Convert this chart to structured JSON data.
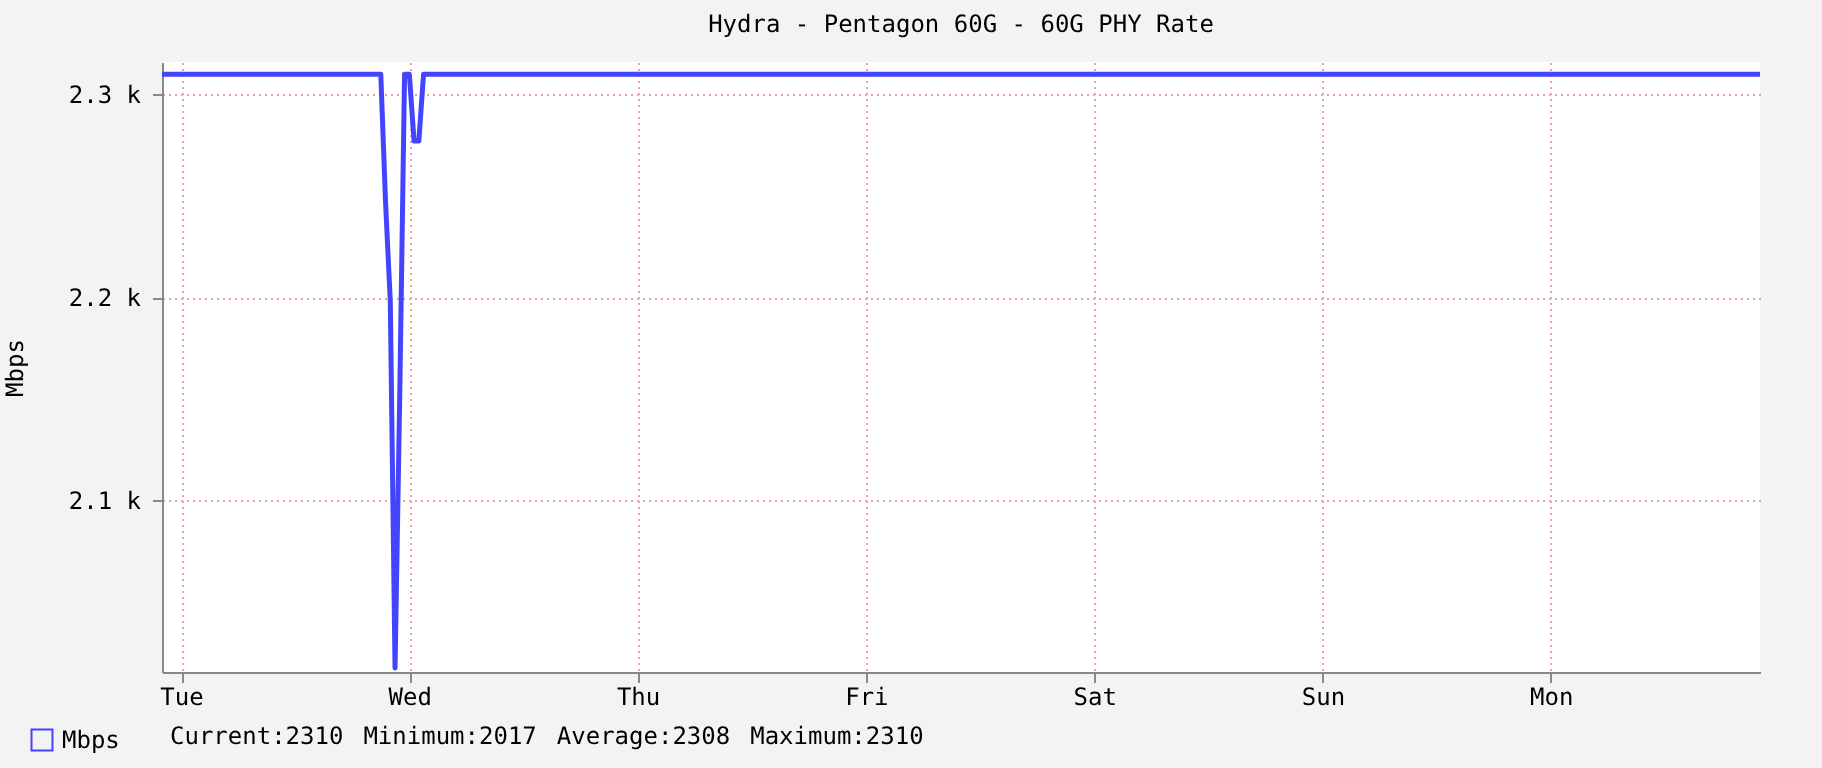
{
  "chart_data": {
    "type": "line",
    "title": "Hydra - Pentagon 60G - 60G PHY Rate",
    "ylabel": "Mbps",
    "categories": [
      null,
      null,
      null,
      null,
      "Tue",
      null,
      null,
      null,
      null,
      null,
      null,
      null,
      null,
      null,
      null,
      null,
      null,
      null,
      null,
      null,
      null,
      null,
      null,
      null,
      null,
      null,
      null,
      null,
      null,
      null,
      null,
      null,
      null,
      null,
      null,
      null,
      null,
      null,
      null,
      null,
      null,
      null,
      null,
      null,
      null,
      null,
      null,
      null,
      null,
      null,
      null,
      null,
      "Wed",
      null,
      null,
      null,
      null,
      null,
      null,
      null,
      null,
      null,
      null,
      null,
      null,
      null,
      null,
      null,
      null,
      null,
      null,
      null,
      null,
      null,
      null,
      null,
      null,
      null,
      null,
      null,
      null,
      null,
      null,
      null,
      null,
      null,
      null,
      null,
      null,
      null,
      null,
      null,
      null,
      null,
      null,
      null,
      null,
      null,
      null,
      null,
      "Thu",
      null,
      null,
      null,
      null,
      null,
      null,
      null,
      null,
      null,
      null,
      null,
      null,
      null,
      null,
      null,
      null,
      null,
      null,
      null,
      null,
      null,
      null,
      null,
      null,
      null,
      null,
      null,
      null,
      null,
      null,
      null,
      null,
      null,
      null,
      null,
      null,
      null,
      null,
      null,
      null,
      null,
      null,
      null,
      null,
      null,
      null,
      null,
      "Fri",
      null,
      null,
      null,
      null,
      null,
      null,
      null,
      null,
      null,
      null,
      null,
      null,
      null,
      null,
      null,
      null,
      null,
      null,
      null,
      null,
      null,
      null,
      null,
      null,
      null,
      null,
      null,
      null,
      null,
      null,
      null,
      null,
      null,
      null,
      null,
      null,
      null,
      null,
      null,
      null,
      null,
      null,
      null,
      null,
      null,
      null,
      null,
      "Sat",
      null,
      null,
      null,
      null,
      null,
      null,
      null,
      null,
      null,
      null,
      null,
      null,
      null,
      null,
      null,
      null,
      null,
      null,
      null,
      null,
      null,
      null,
      null,
      null,
      null,
      null,
      null,
      null,
      null,
      null,
      null,
      null,
      null,
      null,
      null,
      null,
      null,
      null,
      null,
      null,
      null,
      null,
      null,
      null,
      null,
      null,
      null,
      "Sun",
      null,
      null,
      null,
      null,
      null,
      null,
      null,
      null,
      null,
      null,
      null,
      null,
      null,
      null,
      null,
      null,
      null,
      null,
      null,
      null,
      null,
      null,
      null,
      null,
      null,
      null,
      null,
      null,
      null,
      null,
      null,
      null,
      null,
      null,
      null,
      null,
      null,
      null,
      null,
      null,
      null,
      null,
      null,
      null,
      null,
      null,
      null,
      "Mon",
      null,
      null,
      null,
      null,
      null,
      null,
      null,
      null,
      null,
      null,
      null,
      null,
      null,
      null,
      null,
      null,
      null,
      null,
      null,
      null,
      null,
      null,
      null,
      null,
      null,
      null,
      null,
      null,
      null,
      null,
      null,
      null,
      null,
      null,
      null,
      null,
      null,
      null,
      null,
      null,
      null,
      null,
      null,
      null
    ],
    "series": [
      {
        "name": "Mbps",
        "color": "#4444ff",
        "values": [
          2310,
          2310,
          2310,
          2310,
          2310,
          2310,
          2310,
          2310,
          2310,
          2310,
          2310,
          2310,
          2310,
          2310,
          2310,
          2310,
          2310,
          2310,
          2310,
          2310,
          2310,
          2310,
          2310,
          2310,
          2310,
          2310,
          2310,
          2310,
          2310,
          2310,
          2310,
          2310,
          2310,
          2310,
          2310,
          2310,
          2310,
          2310,
          2310,
          2310,
          2310,
          2310,
          2310,
          2310,
          2310,
          2310,
          2310,
          2247,
          2198,
          2017,
          2153,
          2310,
          2310,
          2277,
          2277,
          2310,
          2310,
          2310,
          2310,
          2310,
          2310,
          2310,
          2310,
          2310,
          2310,
          2310,
          2310,
          2310,
          2310,
          2310,
          2310,
          2310,
          2310,
          2310,
          2310,
          2310,
          2310,
          2310,
          2310,
          2310,
          2310,
          2310,
          2310,
          2310,
          2310,
          2310,
          2310,
          2310,
          2310,
          2310,
          2310,
          2310,
          2310,
          2310,
          2310,
          2310,
          2310,
          2310,
          2310,
          2310,
          2310,
          2310,
          2310,
          2310,
          2310,
          2310,
          2310,
          2310,
          2310,
          2310,
          2310,
          2310,
          2310,
          2310,
          2310,
          2310,
          2310,
          2310,
          2310,
          2310,
          2310,
          2310,
          2310,
          2310,
          2310,
          2310,
          2310,
          2310,
          2310,
          2310,
          2310,
          2310,
          2310,
          2310,
          2310,
          2310,
          2310,
          2310,
          2310,
          2310,
          2310,
          2310,
          2310,
          2310,
          2310,
          2310,
          2310,
          2310,
          2310,
          2310,
          2310,
          2310,
          2310,
          2310,
          2310,
          2310,
          2310,
          2310,
          2310,
          2310,
          2310,
          2310,
          2310,
          2310,
          2310,
          2310,
          2310,
          2310,
          2310,
          2310,
          2310,
          2310,
          2310,
          2310,
          2310,
          2310,
          2310,
          2310,
          2310,
          2310,
          2310,
          2310,
          2310,
          2310,
          2310,
          2310,
          2310,
          2310,
          2310,
          2310,
          2310,
          2310,
          2310,
          2310,
          2310,
          2310,
          2310,
          2310,
          2310,
          2310,
          2310,
          2310,
          2310,
          2310,
          2310,
          2310,
          2310,
          2310,
          2310,
          2310,
          2310,
          2310,
          2310,
          2310,
          2310,
          2310,
          2310,
          2310,
          2310,
          2310,
          2310,
          2310,
          2310,
          2310,
          2310,
          2310,
          2310,
          2310,
          2310,
          2310,
          2310,
          2310,
          2310,
          2310,
          2310,
          2310,
          2310,
          2310,
          2310,
          2310,
          2310,
          2310,
          2310,
          2310,
          2310,
          2310,
          2310,
          2310,
          2310,
          2310,
          2310,
          2310,
          2310,
          2310,
          2310,
          2310,
          2310,
          2310,
          2310,
          2310,
          2310,
          2310,
          2310,
          2310,
          2310,
          2310,
          2310,
          2310,
          2310,
          2310,
          2310,
          2310,
          2310,
          2310,
          2310,
          2310,
          2310,
          2310,
          2310,
          2310,
          2310,
          2310,
          2310,
          2310,
          2310,
          2310,
          2310,
          2310,
          2310,
          2310,
          2310,
          2310,
          2310,
          2310,
          2310,
          2310,
          2310,
          2310,
          2310,
          2310,
          2310,
          2310,
          2310,
          2310,
          2310,
          2310,
          2310,
          2310,
          2310,
          2310,
          2310,
          2310,
          2310,
          2310,
          2310,
          2310,
          2310,
          2310,
          2310,
          2310,
          2310,
          2310,
          2310,
          2310,
          2310,
          2310,
          2310,
          2310,
          2310,
          2310,
          2310,
          2310,
          2310,
          2310,
          2310,
          2310,
          2310
        ]
      }
    ],
    "ylim": [
      2015,
      2316
    ],
    "yticks": [
      {
        "value": 2100,
        "label": "2.1 k"
      },
      {
        "value": 2200,
        "label": "2.2 k"
      },
      {
        "value": 2300,
        "label": "2.3 k"
      }
    ],
    "grid": true,
    "legend": "bottom left",
    "annotations": [
      "Current:2310",
      "Minimum:2017",
      "Average:2308",
      "Maximum:2310"
    ]
  }
}
